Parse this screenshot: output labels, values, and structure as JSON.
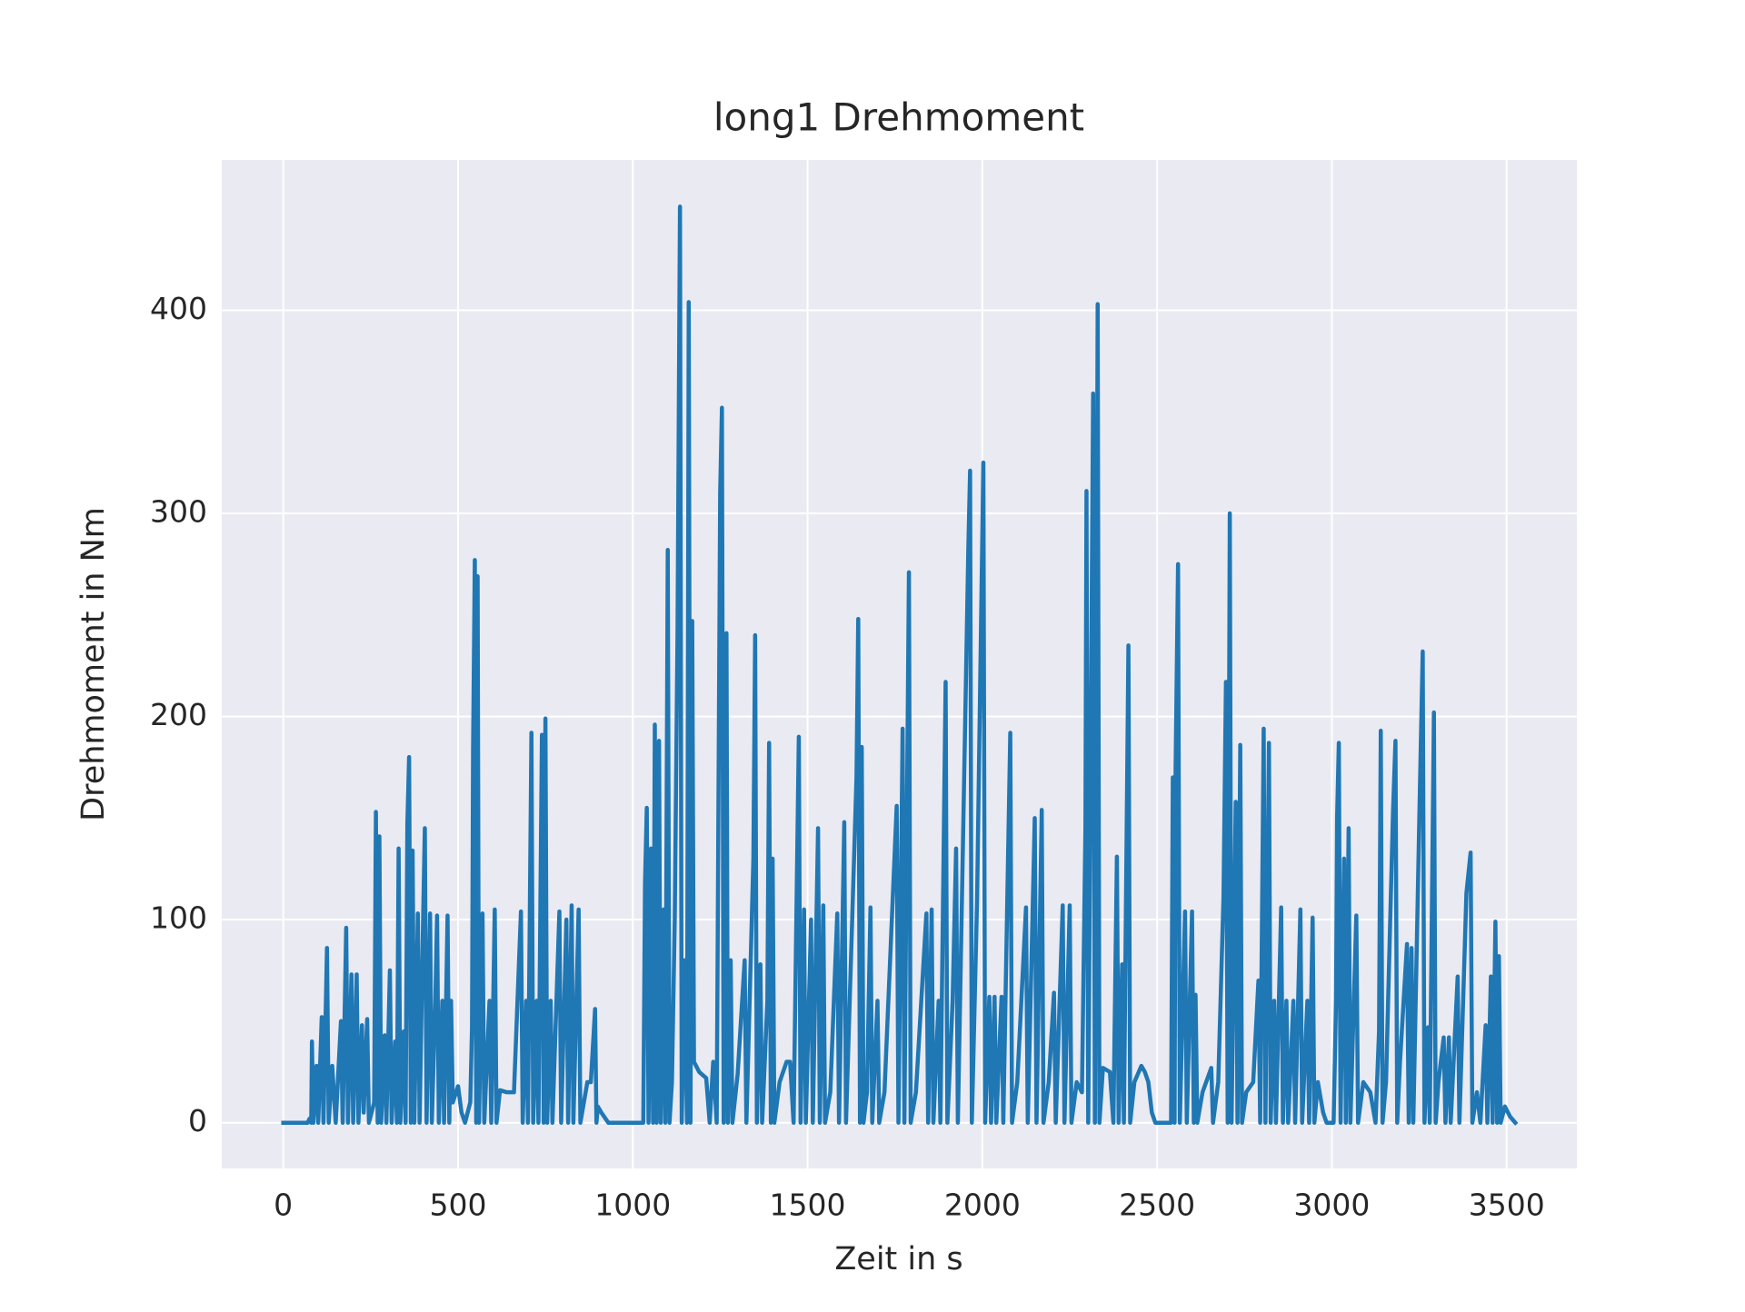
{
  "chart_data": {
    "type": "line",
    "title": "long1 Drehmoment",
    "x_label": "Zeit in s",
    "y_label": "Drehmoment in Nm",
    "color": "#1f77b4",
    "grid": true,
    "xlim": [
      -176,
      3701
    ],
    "ylim": [
      -22.5,
      474
    ],
    "xticks": [
      0,
      500,
      1000,
      1500,
      2000,
      2500,
      3000,
      3500
    ],
    "yticks": [
      0,
      100,
      200,
      300,
      400
    ],
    "x": [
      0,
      70,
      75,
      80,
      82,
      86,
      95,
      100,
      110,
      115,
      125,
      130,
      140,
      150,
      165,
      170,
      180,
      185,
      195,
      200,
      210,
      215,
      225,
      230,
      240,
      245,
      260,
      265,
      270,
      275,
      280,
      290,
      295,
      305,
      310,
      320,
      325,
      330,
      335,
      345,
      350,
      355,
      360,
      365,
      370,
      375,
      385,
      390,
      400,
      405,
      410,
      420,
      425,
      435,
      440,
      445,
      455,
      460,
      470,
      475,
      480,
      485,
      500,
      510,
      520,
      535,
      540,
      543,
      548,
      552,
      556,
      560,
      570,
      575,
      590,
      595,
      605,
      610,
      620,
      640,
      660,
      680,
      685,
      695,
      700,
      710,
      715,
      725,
      730,
      740,
      745,
      750,
      755,
      765,
      770,
      790,
      795,
      810,
      815,
      825,
      830,
      845,
      850,
      870,
      880,
      892,
      896,
      900,
      910,
      930,
      1030,
      1035,
      1040,
      1045,
      1052,
      1058,
      1063,
      1068,
      1075,
      1080,
      1088,
      1093,
      1100,
      1105,
      1112,
      1120,
      1128,
      1135,
      1140,
      1148,
      1155,
      1160,
      1165,
      1170,
      1175,
      1190,
      1210,
      1220,
      1230,
      1240,
      1250,
      1255,
      1260,
      1268,
      1272,
      1280,
      1285,
      1300,
      1320,
      1325,
      1345,
      1350,
      1355,
      1365,
      1370,
      1385,
      1390,
      1395,
      1400,
      1405,
      1420,
      1440,
      1450,
      1460,
      1475,
      1480,
      1490,
      1495,
      1510,
      1515,
      1530,
      1535,
      1545,
      1550,
      1565,
      1585,
      1590,
      1605,
      1610,
      1640,
      1645,
      1650,
      1655,
      1660,
      1670,
      1680,
      1685,
      1700,
      1705,
      1720,
      1755,
      1760,
      1772,
      1777,
      1790,
      1795,
      1810,
      1840,
      1845,
      1855,
      1860,
      1875,
      1880,
      1895,
      1900,
      1915,
      1925,
      1930,
      1960,
      1965,
      1970,
      1985,
      2003,
      2008,
      2020,
      2025,
      2035,
      2040,
      2055,
      2060,
      2080,
      2085,
      2100,
      2125,
      2130,
      2150,
      2155,
      2170,
      2175,
      2190,
      2205,
      2210,
      2230,
      2235,
      2250,
      2255,
      2270,
      2285,
      2295,
      2298,
      2303,
      2317,
      2322,
      2330,
      2335,
      2345,
      2365,
      2375,
      2385,
      2390,
      2400,
      2405,
      2418,
      2423,
      2435,
      2455,
      2465,
      2475,
      2485,
      2495,
      2540,
      2545,
      2550,
      2553,
      2560,
      2565,
      2580,
      2585,
      2600,
      2605,
      2610,
      2615,
      2630,
      2655,
      2660,
      2675,
      2690,
      2697,
      2702,
      2708,
      2713,
      2725,
      2730,
      2738,
      2743,
      2755,
      2775,
      2790,
      2795,
      2805,
      2810,
      2820,
      2825,
      2835,
      2840,
      2855,
      2860,
      2870,
      2875,
      2890,
      2895,
      2910,
      2915,
      2930,
      2935,
      2945,
      2950,
      2960,
      2975,
      2985,
      3005,
      3012,
      3015,
      3020,
      3025,
      3035,
      3040,
      3048,
      3053,
      3070,
      3075,
      3090,
      3110,
      3125,
      3135,
      3140,
      3145,
      3155,
      3175,
      3182,
      3187,
      3195,
      3215,
      3220,
      3228,
      3233,
      3250,
      3260,
      3265,
      3275,
      3280,
      3292,
      3297,
      3305,
      3320,
      3325,
      3335,
      3340,
      3360,
      3365,
      3385,
      3397,
      3402,
      3415,
      3425,
      3440,
      3445,
      3455,
      3460,
      3468,
      3473,
      3478,
      3483,
      3495,
      3510,
      3525
    ],
    "values": [
      0,
      0,
      2,
      0,
      40,
      0,
      28,
      0,
      52,
      0,
      86,
      0,
      28,
      0,
      50,
      0,
      96,
      0,
      73,
      0,
      73,
      0,
      48,
      5,
      51,
      0,
      10,
      153,
      0,
      141,
      0,
      43,
      0,
      75,
      0,
      40,
      0,
      135,
      0,
      45,
      0,
      147,
      180,
      0,
      134,
      0,
      103,
      0,
      100,
      145,
      0,
      103,
      0,
      60,
      102,
      0,
      60,
      0,
      102,
      0,
      60,
      10,
      18,
      5,
      0,
      10,
      47,
      183,
      277,
      0,
      269,
      0,
      103,
      0,
      60,
      0,
      105,
      0,
      16,
      15,
      15,
      104,
      0,
      60,
      0,
      192,
      0,
      60,
      0,
      191,
      0,
      199,
      0,
      60,
      0,
      104,
      0,
      100,
      0,
      107,
      0,
      105,
      0,
      20,
      20,
      56,
      0,
      8,
      5,
      0,
      0,
      118,
      155,
      0,
      135,
      0,
      196,
      0,
      188,
      0,
      105,
      0,
      282,
      0,
      20,
      100,
      242,
      451,
      0,
      80,
      0,
      404,
      0,
      247,
      30,
      25,
      22,
      0,
      30,
      0,
      310,
      352,
      0,
      241,
      0,
      80,
      0,
      24,
      80,
      0,
      130,
      240,
      0,
      78,
      0,
      60,
      187,
      0,
      130,
      0,
      20,
      30,
      30,
      0,
      190,
      0,
      105,
      0,
      100,
      0,
      145,
      0,
      107,
      0,
      15,
      103,
      0,
      148,
      0,
      170,
      248,
      0,
      185,
      0,
      15,
      106,
      0,
      60,
      0,
      15,
      156,
      0,
      194,
      0,
      271,
      0,
      15,
      103,
      0,
      105,
      0,
      60,
      0,
      217,
      0,
      60,
      135,
      0,
      283,
      321,
      0,
      110,
      325,
      0,
      62,
      0,
      62,
      0,
      62,
      0,
      192,
      0,
      20,
      106,
      0,
      150,
      0,
      154,
      0,
      20,
      64,
      0,
      107,
      0,
      107,
      0,
      20,
      15,
      145,
      311,
      0,
      359,
      0,
      403,
      0,
      27,
      25,
      0,
      131,
      0,
      78,
      0,
      235,
      0,
      20,
      28,
      25,
      20,
      5,
      0,
      0,
      170,
      0,
      175,
      275,
      0,
      104,
      0,
      104,
      0,
      63,
      0,
      15,
      27,
      0,
      20,
      111,
      217,
      0,
      300,
      0,
      158,
      0,
      186,
      0,
      15,
      20,
      70,
      0,
      194,
      0,
      187,
      0,
      60,
      0,
      106,
      0,
      60,
      0,
      60,
      0,
      105,
      0,
      60,
      0,
      101,
      0,
      20,
      5,
      0,
      0,
      60,
      150,
      187,
      0,
      130,
      0,
      145,
      0,
      102,
      0,
      20,
      15,
      0,
      45,
      193,
      0,
      20,
      153,
      188,
      0,
      30,
      88,
      0,
      86,
      0,
      148,
      232,
      0,
      47,
      0,
      202,
      0,
      20,
      42,
      0,
      42,
      0,
      72,
      0,
      113,
      133,
      0,
      15,
      0,
      48,
      0,
      72,
      0,
      99,
      0,
      82,
      0,
      8,
      3,
      0
    ]
  }
}
